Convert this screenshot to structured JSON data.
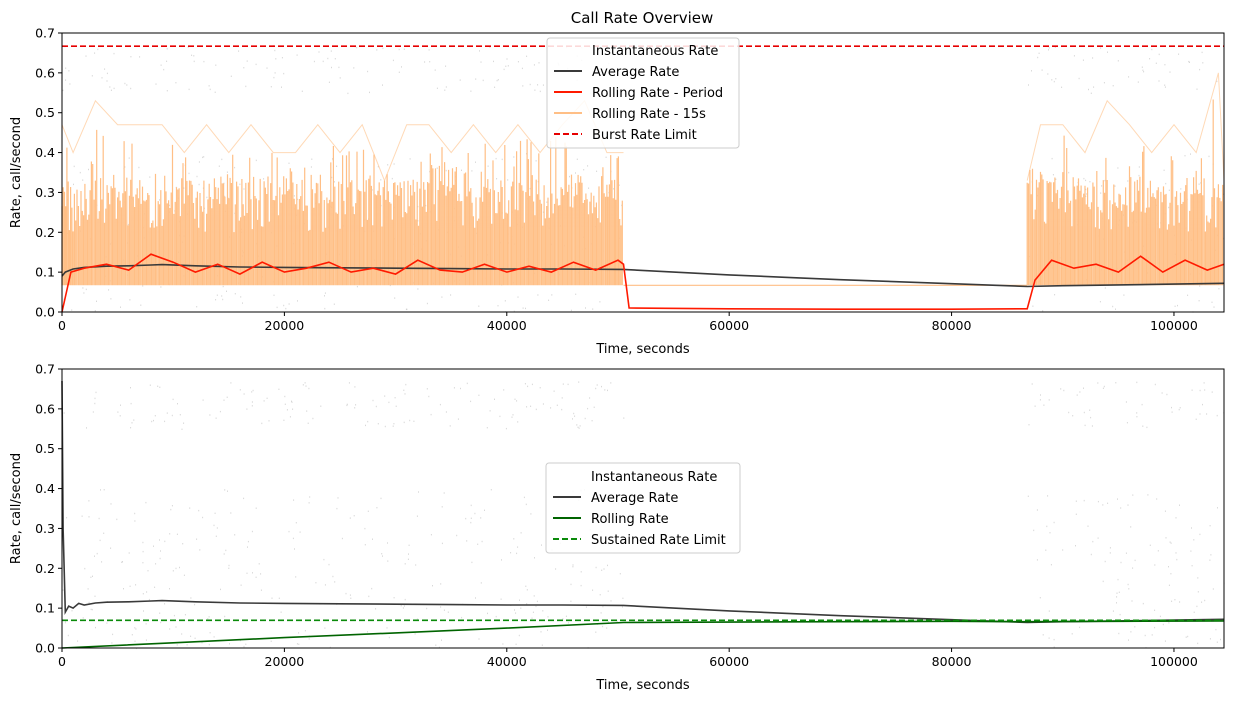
{
  "colors": {
    "instantaneous": "#c8c8c8",
    "average": "#3a3a3a",
    "rolling_period": "#ff1a00",
    "rolling_15s": "#ffbf86",
    "burst_limit": "#e60000",
    "rolling_rate": "#006400",
    "sustained_limit": "#0a8a0a"
  },
  "chart_data": [
    {
      "type": "line",
      "title": "Call Rate Overview",
      "xlabel": "Time, seconds",
      "ylabel": "Rate, call/second",
      "xlim": [
        0,
        104500
      ],
      "ylim": [
        0,
        0.7
      ],
      "xticks": [
        0,
        20000,
        40000,
        60000,
        80000,
        100000
      ],
      "xtick_labels": [
        "0",
        "20000",
        "40000",
        "60000",
        "80000",
        "100000"
      ],
      "yticks": [
        0,
        0.1,
        0.2,
        0.3,
        0.4,
        0.5,
        0.6,
        0.7
      ],
      "ytick_labels": [
        "0.0",
        "0.1",
        "0.2",
        "0.3",
        "0.4",
        "0.5",
        "0.6",
        "0.7"
      ],
      "grid": false,
      "legend_position": "upper-center",
      "legend": [
        "Instantaneous Rate",
        "Average Rate",
        "Rolling Rate - Period",
        "Rolling Rate - 15s",
        "Burst Rate Limit"
      ],
      "active_periods": [
        [
          0,
          50500
        ],
        [
          86800,
          104500
        ]
      ],
      "series": [
        {
          "name": "Average Rate",
          "style": "solid",
          "color_key": "average",
          "x": [
            0,
            300,
            1000,
            2000,
            4000,
            6000,
            8000,
            9000,
            12000,
            16000,
            20000,
            25000,
            30000,
            35000,
            40000,
            45000,
            50500,
            55000,
            60000,
            65000,
            70000,
            75000,
            80000,
            84000,
            86800,
            90000,
            95000,
            100000,
            104500
          ],
          "y": [
            0.09,
            0.1,
            0.108,
            0.112,
            0.115,
            0.116,
            0.118,
            0.119,
            0.116,
            0.113,
            0.112,
            0.111,
            0.11,
            0.109,
            0.108,
            0.108,
            0.107,
            0.1,
            0.093,
            0.087,
            0.081,
            0.076,
            0.071,
            0.067,
            0.064,
            0.066,
            0.068,
            0.07,
            0.072
          ]
        },
        {
          "name": "Rolling Rate - Period",
          "style": "solid",
          "color_key": "rolling_period",
          "x": [
            0,
            800,
            2000,
            4000,
            6000,
            8000,
            10000,
            12000,
            14000,
            16000,
            18000,
            20000,
            22000,
            24000,
            26000,
            28000,
            30000,
            32000,
            34000,
            36000,
            38000,
            40000,
            42000,
            44000,
            46000,
            48000,
            50000,
            50500,
            51000,
            60000,
            70000,
            80000,
            86800,
            87500,
            89000,
            91000,
            93000,
            95000,
            97000,
            99000,
            101000,
            103000,
            104500
          ],
          "y": [
            0.0,
            0.1,
            0.11,
            0.12,
            0.105,
            0.145,
            0.125,
            0.1,
            0.12,
            0.095,
            0.125,
            0.1,
            0.11,
            0.125,
            0.1,
            0.11,
            0.095,
            0.13,
            0.105,
            0.1,
            0.12,
            0.1,
            0.115,
            0.1,
            0.125,
            0.105,
            0.13,
            0.12,
            0.01,
            0.008,
            0.007,
            0.007,
            0.008,
            0.08,
            0.13,
            0.11,
            0.12,
            0.1,
            0.14,
            0.1,
            0.13,
            0.105,
            0.12
          ]
        },
        {
          "name": "Rolling Rate - 15s",
          "style": "solid",
          "color_key": "rolling_15s",
          "x": [
            0,
            1000,
            3000,
            5000,
            7000,
            9000,
            11000,
            13000,
            15000,
            17000,
            19000,
            21000,
            23000,
            25000,
            27000,
            29000,
            31000,
            33000,
            35000,
            37000,
            39000,
            41000,
            43000,
            45000,
            47000,
            49000,
            50500,
            86800,
            88000,
            90000,
            92000,
            94000,
            96000,
            98000,
            100000,
            102000,
            104000,
            104500
          ],
          "y": [
            0.47,
            0.4,
            0.53,
            0.47,
            0.47,
            0.47,
            0.4,
            0.47,
            0.4,
            0.47,
            0.4,
            0.4,
            0.47,
            0.4,
            0.47,
            0.33,
            0.47,
            0.47,
            0.4,
            0.47,
            0.4,
            0.47,
            0.4,
            0.47,
            0.53,
            0.4,
            0.4,
            0.33,
            0.47,
            0.47,
            0.4,
            0.53,
            0.47,
            0.4,
            0.47,
            0.4,
            0.6,
            0.33
          ],
          "baseline": 0.067
        },
        {
          "name": "Burst Rate Limit",
          "style": "dashed",
          "color_key": "burst_limit",
          "x": [
            0,
            104500
          ],
          "y": [
            0.667,
            0.667
          ]
        }
      ]
    },
    {
      "type": "line",
      "title": "",
      "xlabel": "Time, seconds",
      "ylabel": "Rate, call/second",
      "xlim": [
        0,
        104500
      ],
      "ylim": [
        0,
        0.7
      ],
      "xticks": [
        0,
        20000,
        40000,
        60000,
        80000,
        100000
      ],
      "xtick_labels": [
        "0",
        "20000",
        "40000",
        "60000",
        "80000",
        "100000"
      ],
      "yticks": [
        0,
        0.1,
        0.2,
        0.3,
        0.4,
        0.5,
        0.6,
        0.7
      ],
      "ytick_labels": [
        "0.0",
        "0.1",
        "0.2",
        "0.3",
        "0.4",
        "0.5",
        "0.6",
        "0.7"
      ],
      "grid": false,
      "legend_position": "center",
      "legend": [
        "Instantaneous Rate",
        "Average Rate",
        "Rolling Rate",
        "Sustained Rate Limit"
      ],
      "active_periods": [
        [
          0,
          50500
        ],
        [
          86800,
          104500
        ]
      ],
      "series": [
        {
          "name": "Average Rate",
          "style": "solid",
          "color_key": "average",
          "x": [
            0,
            100,
            300,
            600,
            1000,
            1500,
            2000,
            3000,
            4000,
            6000,
            8000,
            9000,
            12000,
            16000,
            20000,
            25000,
            30000,
            35000,
            40000,
            45000,
            50500,
            55000,
            60000,
            65000,
            70000,
            75000,
            80000,
            84000,
            86800,
            90000,
            95000,
            100000,
            104500
          ],
          "y": [
            0.67,
            0.3,
            0.09,
            0.105,
            0.1,
            0.112,
            0.108,
            0.113,
            0.115,
            0.116,
            0.118,
            0.119,
            0.116,
            0.113,
            0.112,
            0.111,
            0.11,
            0.109,
            0.108,
            0.108,
            0.107,
            0.1,
            0.093,
            0.087,
            0.081,
            0.076,
            0.071,
            0.067,
            0.064,
            0.066,
            0.068,
            0.07,
            0.072
          ]
        },
        {
          "name": "Rolling Rate",
          "style": "solid",
          "color_key": "rolling_rate",
          "x": [
            0,
            10000,
            20000,
            30000,
            40000,
            50500,
            60000,
            70000,
            80000,
            86800,
            95000,
            104500
          ],
          "y": [
            0.0,
            0.013,
            0.026,
            0.038,
            0.05,
            0.064,
            0.065,
            0.066,
            0.067,
            0.066,
            0.067,
            0.068
          ]
        },
        {
          "name": "Sustained Rate Limit",
          "style": "dashed",
          "color_key": "sustained_limit",
          "x": [
            0,
            104500
          ],
          "y": [
            0.0694,
            0.0694
          ]
        }
      ]
    }
  ]
}
